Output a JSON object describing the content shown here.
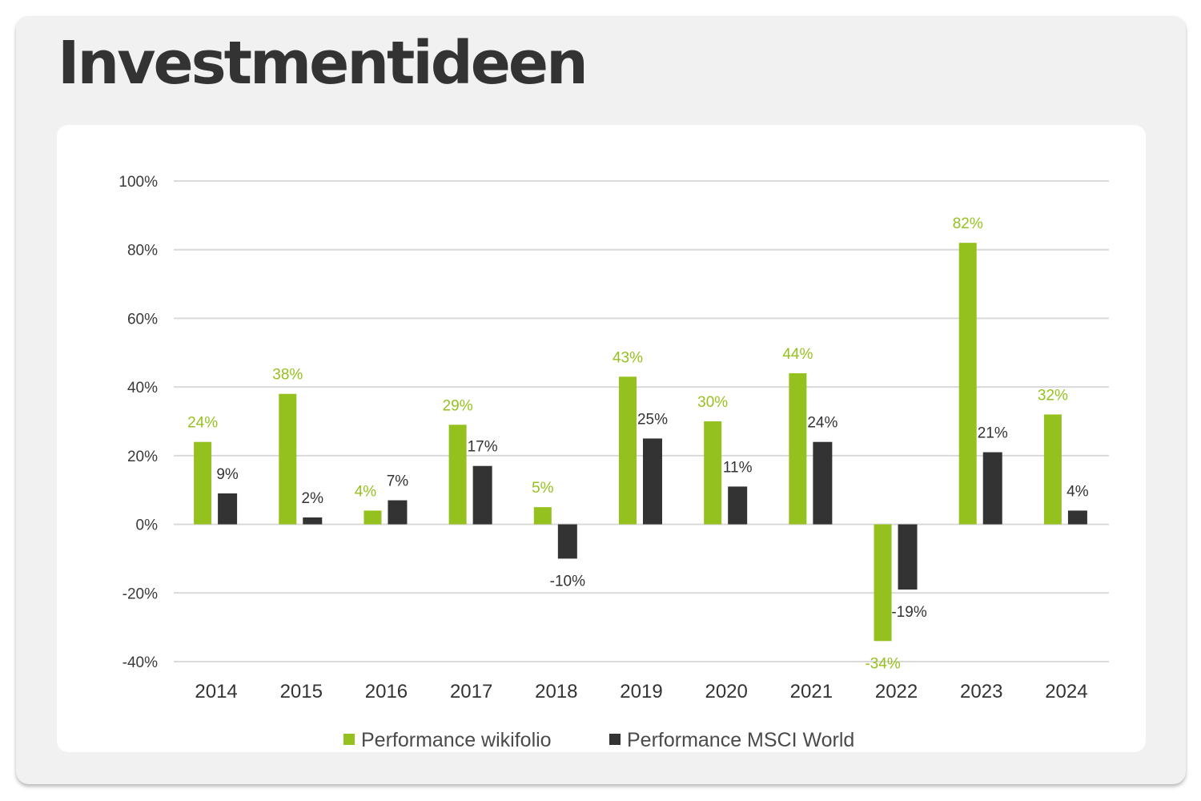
{
  "page": {
    "title": "Investmentideen"
  },
  "colors": {
    "wikifolio": "#95c11f",
    "msci": "#333333",
    "grid": "#d9d9d9",
    "card_bg": "#f1f1f1"
  },
  "chart_data": {
    "type": "bar",
    "title": "",
    "xlabel": "",
    "ylabel": "",
    "ylim": [
      -40,
      100
    ],
    "y_ticks": [
      100,
      80,
      60,
      40,
      20,
      0,
      -20,
      -40
    ],
    "y_tick_labels": [
      "100%",
      "80%",
      "60%",
      "40%",
      "20%",
      "0%",
      "-20%",
      "-40%"
    ],
    "grid": true,
    "legend_position": "bottom",
    "categories": [
      "2014",
      "2015",
      "2016",
      "2017",
      "2018",
      "2019",
      "2020",
      "2021",
      "2022",
      "2023",
      "2024"
    ],
    "series": [
      {
        "name": "Performance wikifolio",
        "color": "#95c11f",
        "values": [
          24,
          38,
          4,
          29,
          5,
          43,
          30,
          44,
          -34,
          82,
          32
        ],
        "labels": [
          "24%",
          "38%",
          "4%",
          "29%",
          "5%",
          "43%",
          "30%",
          "44%",
          "-34%",
          "82%",
          "32%"
        ]
      },
      {
        "name": "Performance MSCI World",
        "color": "#333333",
        "values": [
          9,
          2,
          7,
          17,
          -10,
          25,
          11,
          24,
          -19,
          21,
          4
        ],
        "labels": [
          "9%",
          "2%",
          "7%",
          "17%",
          "-10%",
          "25%",
          "11%",
          "24%",
          "-19%",
          "21%",
          "4%"
        ]
      }
    ]
  }
}
